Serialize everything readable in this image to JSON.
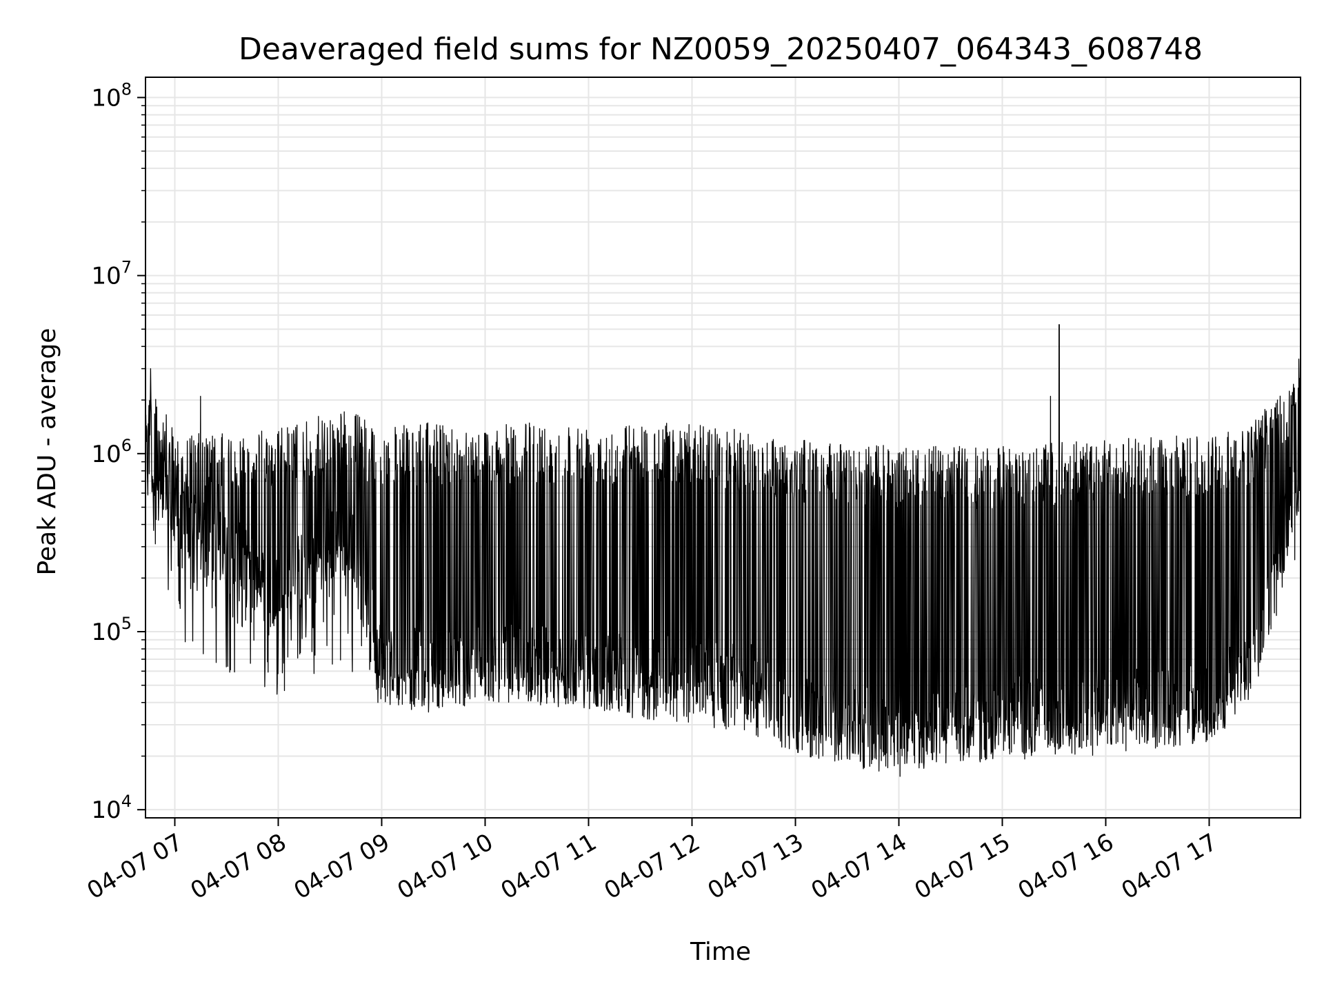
{
  "chart_data": {
    "type": "line",
    "title": "Deaveraged field sums for NZ0059_20250407_064343_608748",
    "xlabel": "Time",
    "ylabel": "Peak ADU - average",
    "yscale": "log",
    "ylim": [
      9000,
      130000000
    ],
    "xlim": [
      "04-07 06:43",
      "04-07 17:53"
    ],
    "grid": true,
    "line_color": "#000000",
    "grid_color": "#e6e6e6",
    "y_ticks": [
      {
        "base": "10",
        "exp": "4",
        "value": 10000
      },
      {
        "base": "10",
        "exp": "5",
        "value": 100000
      },
      {
        "base": "10",
        "exp": "6",
        "value": 1000000
      },
      {
        "base": "10",
        "exp": "7",
        "value": 10000000
      },
      {
        "base": "10",
        "exp": "8",
        "value": 100000000
      }
    ],
    "x_ticks": [
      {
        "label": "04-07 07",
        "time": "04-07 07:00"
      },
      {
        "label": "04-07 08",
        "time": "04-07 08:00"
      },
      {
        "label": "04-07 09",
        "time": "04-07 09:00"
      },
      {
        "label": "04-07 10",
        "time": "04-07 10:00"
      },
      {
        "label": "04-07 11",
        "time": "04-07 11:00"
      },
      {
        "label": "04-07 12",
        "time": "04-07 12:00"
      },
      {
        "label": "04-07 13",
        "time": "04-07 13:00"
      },
      {
        "label": "04-07 14",
        "time": "04-07 14:00"
      },
      {
        "label": "04-07 15",
        "time": "04-07 15:00"
      },
      {
        "label": "04-07 16",
        "time": "04-07 16:00"
      },
      {
        "label": "04-07 17",
        "time": "04-07 17:00"
      }
    ],
    "series_envelope": [
      {
        "time": "04-07 06:43",
        "low": 600000,
        "high": 3000000,
        "base": 900000
      },
      {
        "time": "04-07 07:00",
        "low": 80000,
        "high": 1300000,
        "base": 350000
      },
      {
        "time": "04-07 07:30",
        "low": 60000,
        "high": 1300000,
        "base": 250000
      },
      {
        "time": "04-07 08:00",
        "low": 42000,
        "high": 1400000,
        "base": 150000
      },
      {
        "time": "04-07 08:40",
        "low": 60000,
        "high": 1800000,
        "base": 350000
      },
      {
        "time": "04-07 09:00",
        "low": 38000,
        "high": 1400000,
        "base": 60000
      },
      {
        "time": "04-07 09:30",
        "low": 35000,
        "high": 1500000,
        "base": 55000
      },
      {
        "time": "04-07 10:00",
        "low": 40000,
        "high": 1400000,
        "base": 60000
      },
      {
        "time": "04-07 10:20",
        "low": 40000,
        "high": 1500000,
        "base": 60000
      },
      {
        "time": "04-07 11:00",
        "low": 35000,
        "high": 1500000,
        "base": 55000
      },
      {
        "time": "04-07 12:00",
        "low": 30000,
        "high": 1500000,
        "base": 50000
      },
      {
        "time": "04-07 12:40",
        "low": 25000,
        "high": 1300000,
        "base": 45000
      },
      {
        "time": "04-07 13:00",
        "low": 20000,
        "high": 1200000,
        "base": 30000
      },
      {
        "time": "04-07 14:00",
        "low": 15000,
        "high": 1100000,
        "base": 25000
      },
      {
        "time": "04-07 14:40",
        "low": 18000,
        "high": 1100000,
        "base": 28000
      },
      {
        "time": "04-07 15:00",
        "low": 18000,
        "high": 1100000,
        "base": 30000
      },
      {
        "time": "04-07 16:00",
        "low": 20000,
        "high": 1200000,
        "base": 33000
      },
      {
        "time": "04-07 17:00",
        "low": 24000,
        "high": 1300000,
        "base": 35000
      },
      {
        "time": "04-07 17:25",
        "low": 50000,
        "high": 1500000,
        "base": 60000
      },
      {
        "time": "04-07 17:53",
        "low": 300000,
        "high": 3200000,
        "base": 800000
      }
    ],
    "notable_spikes": [
      {
        "time": "04-07 06:46",
        "value": 3000000
      },
      {
        "time": "04-07 07:15",
        "value": 2100000
      },
      {
        "time": "04-07 15:28",
        "value": 2100000
      },
      {
        "time": "04-07 15:33",
        "value": 5300000
      },
      {
        "time": "04-07 17:52",
        "value": 3400000
      }
    ]
  }
}
